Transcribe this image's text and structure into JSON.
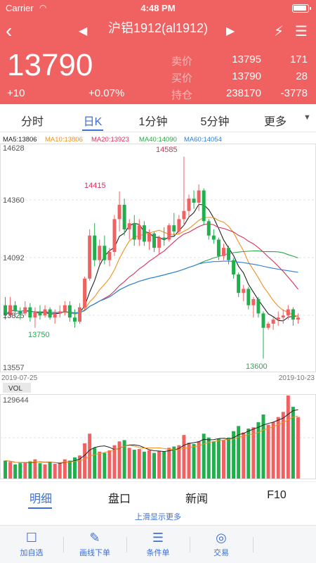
{
  "status_bar": {
    "carrier": "Carrier",
    "time": "4:48 PM"
  },
  "nav": {
    "back": "‹",
    "prev": "◀",
    "next": "▶",
    "title": "沪铝1912(al1912)",
    "flash": "⚡",
    "menu": "☰"
  },
  "quote": {
    "price": "13790",
    "change": "+10",
    "change_pct": "+0.07%",
    "rows": [
      {
        "label": "卖价",
        "value": "13795",
        "extra": "171"
      },
      {
        "label": "买价",
        "value": "13790",
        "extra": "28"
      },
      {
        "label": "持仓",
        "value": "238170",
        "extra": "-3778"
      }
    ]
  },
  "period_tabs": [
    {
      "label": "分时"
    },
    {
      "label": "日K"
    },
    {
      "label": "1分钟"
    },
    {
      "label": "5分钟"
    },
    {
      "label": "更多"
    }
  ],
  "ma_legend": [
    {
      "label": "MA5:13806",
      "color": "#222222"
    },
    {
      "label": "MA10:13806",
      "color": "#f0901e"
    },
    {
      "label": "MA20:13923",
      "color": "#d8315b"
    },
    {
      "label": "MA40:14090",
      "color": "#28a745"
    },
    {
      "label": "MA60:14054",
      "color": "#2f7de1"
    }
  ],
  "colors": {
    "up": "#f06161",
    "down": "#1fb04c",
    "accent": "#3d6fd6"
  },
  "chart_data": {
    "type": "candlestick",
    "price_axis": {
      "ticks": [
        "14628",
        "14360",
        "14092",
        "13825",
        "13557"
      ],
      "min": 13557,
      "max": 14628
    },
    "vol_axis": {
      "label": "VOL",
      "max_label": "129644",
      "max": 129644
    },
    "x_start": "2019-07-25",
    "x_end": "2019-10-23",
    "annotations": [
      {
        "text": "14585",
        "color": "#d8315b"
      },
      {
        "text": "14415",
        "color": "#d8315b"
      },
      {
        "text": "13750",
        "color": "#1fb04c"
      },
      {
        "text": "13600",
        "color": "#1fb04c"
      }
    ],
    "candles": [
      [
        13860,
        13900,
        13790,
        13810
      ],
      [
        13810,
        13900,
        13800,
        13860
      ],
      [
        13860,
        13880,
        13800,
        13830
      ],
      [
        13830,
        13850,
        13790,
        13820
      ],
      [
        13820,
        13880,
        13810,
        13850
      ],
      [
        13850,
        13870,
        13780,
        13800
      ],
      [
        13800,
        13850,
        13750,
        13830
      ],
      [
        13830,
        13860,
        13790,
        13810
      ],
      [
        13810,
        13860,
        13800,
        13840
      ],
      [
        13840,
        13850,
        13790,
        13800
      ],
      [
        13800,
        13840,
        13770,
        13820
      ],
      [
        13820,
        13860,
        13800,
        13830
      ],
      [
        13830,
        13880,
        13810,
        13860
      ],
      [
        13860,
        13880,
        13780,
        13800
      ],
      [
        13800,
        13840,
        13750,
        13780
      ],
      [
        13780,
        13870,
        13770,
        13850
      ],
      [
        13850,
        14000,
        13840,
        13990
      ],
      [
        13990,
        14230,
        13980,
        14200
      ],
      [
        14200,
        14260,
        14050,
        14080
      ],
      [
        14080,
        14180,
        14060,
        14150
      ],
      [
        14150,
        14200,
        14060,
        14080
      ],
      [
        14080,
        14140,
        14050,
        14120
      ],
      [
        14120,
        14300,
        14100,
        14280
      ],
      [
        14280,
        14415,
        14220,
        14350
      ],
      [
        14350,
        14380,
        14200,
        14230
      ],
      [
        14230,
        14280,
        14180,
        14260
      ],
      [
        14260,
        14300,
        14150,
        14180
      ],
      [
        14180,
        14280,
        14150,
        14250
      ],
      [
        14250,
        14270,
        14150,
        14170
      ],
      [
        14170,
        14230,
        14130,
        14210
      ],
      [
        14210,
        14220,
        14120,
        14140
      ],
      [
        14140,
        14200,
        14110,
        14190
      ],
      [
        14190,
        14240,
        14150,
        14180
      ],
      [
        14180,
        14260,
        14170,
        14250
      ],
      [
        14250,
        14310,
        14200,
        14220
      ],
      [
        14220,
        14300,
        14210,
        14280
      ],
      [
        14280,
        14585,
        14250,
        14320
      ],
      [
        14320,
        14400,
        14290,
        14380
      ],
      [
        14380,
        14420,
        14330,
        14360
      ],
      [
        14360,
        14450,
        14320,
        14420
      ],
      [
        14420,
        14430,
        14250,
        14270
      ],
      [
        14270,
        14280,
        14180,
        14200
      ],
      [
        14200,
        14230,
        14160,
        14180
      ],
      [
        14180,
        14190,
        14080,
        14100
      ],
      [
        14100,
        14160,
        14080,
        14140
      ],
      [
        14140,
        14150,
        14060,
        14080
      ],
      [
        14080,
        14090,
        13990,
        14010
      ],
      [
        14010,
        14020,
        13900,
        13920
      ],
      [
        13920,
        13960,
        13880,
        13940
      ],
      [
        13940,
        13950,
        13840,
        13860
      ],
      [
        13860,
        13900,
        13800,
        13890
      ],
      [
        13890,
        13900,
        13800,
        13820
      ],
      [
        13820,
        13830,
        13600,
        13750
      ],
      [
        13750,
        13780,
        13740,
        13770
      ],
      [
        13770,
        13800,
        13740,
        13790
      ],
      [
        13790,
        13830,
        13760,
        13800
      ],
      [
        13800,
        13840,
        13770,
        13810
      ],
      [
        13810,
        13860,
        13790,
        13840
      ],
      [
        13840,
        13850,
        13760,
        13790
      ],
      [
        13790,
        13820,
        13770,
        13800
      ]
    ],
    "volumes": [
      28,
      26,
      22,
      24,
      25,
      27,
      30,
      24,
      22,
      26,
      23,
      25,
      30,
      28,
      33,
      36,
      55,
      70,
      48,
      42,
      40,
      44,
      52,
      58,
      60,
      48,
      45,
      46,
      42,
      44,
      40,
      43,
      42,
      48,
      50,
      52,
      68,
      56,
      54,
      58,
      70,
      64,
      58,
      62,
      60,
      64,
      74,
      82,
      72,
      78,
      80,
      88,
      100,
      84,
      88,
      96,
      104,
      129.644,
      112,
      96
    ]
  },
  "info_tabs": [
    {
      "label": "明细"
    },
    {
      "label": "盘口"
    },
    {
      "label": "新闻"
    },
    {
      "label": "F10"
    }
  ],
  "hint": "上滑显示更多",
  "toolbar": [
    {
      "icon": "☐",
      "label": "加自选"
    },
    {
      "icon": "✎",
      "label": "画线下单"
    },
    {
      "icon": "☰",
      "label": "条件单"
    },
    {
      "icon": "◎",
      "label": "交易"
    }
  ]
}
